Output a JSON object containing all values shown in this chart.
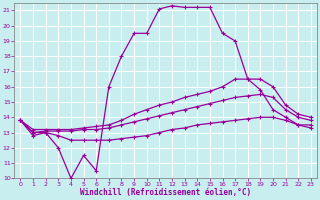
{
  "title": "",
  "xlabel": "Windchill (Refroidissement éolien,°C)",
  "ylabel": "",
  "xlim": [
    -0.5,
    23.5
  ],
  "ylim": [
    10,
    21.5
  ],
  "yticks": [
    10,
    11,
    12,
    13,
    14,
    15,
    16,
    17,
    18,
    19,
    20,
    21
  ],
  "xticks": [
    0,
    1,
    2,
    3,
    4,
    5,
    6,
    7,
    8,
    9,
    10,
    11,
    12,
    13,
    14,
    15,
    16,
    17,
    18,
    19,
    20,
    21,
    22,
    23
  ],
  "background_color": "#c8eef0",
  "grid_color": "#ffffff",
  "line_color": "#990099",
  "line1_x": [
    0,
    1,
    2,
    3,
    4,
    5,
    6,
    7,
    8,
    9,
    10,
    11,
    12,
    13,
    14,
    15,
    16,
    17,
    18,
    19,
    20,
    21,
    22,
    23
  ],
  "line1_y": [
    13.8,
    12.8,
    13.0,
    12.0,
    10.0,
    11.5,
    10.5,
    16.0,
    18.0,
    19.5,
    19.5,
    21.1,
    21.3,
    21.2,
    21.2,
    21.2,
    19.5,
    19.0,
    16.5,
    15.8,
    14.5,
    14.0,
    13.5,
    13.5
  ],
  "line2_x": [
    0,
    1,
    2,
    3,
    4,
    5,
    6,
    7,
    8,
    9,
    10,
    11,
    12,
    13,
    14,
    15,
    16,
    17,
    18,
    19,
    20,
    21,
    22,
    23
  ],
  "line2_y": [
    13.8,
    13.2,
    13.2,
    13.2,
    13.2,
    13.3,
    13.4,
    13.5,
    13.8,
    14.2,
    14.5,
    14.8,
    15.0,
    15.3,
    15.5,
    15.7,
    16.0,
    16.5,
    16.5,
    16.5,
    16.0,
    14.8,
    14.2,
    14.0
  ],
  "line3_x": [
    0,
    1,
    2,
    3,
    4,
    5,
    6,
    7,
    8,
    9,
    10,
    11,
    12,
    13,
    14,
    15,
    16,
    17,
    18,
    19,
    20,
    21,
    22,
    23
  ],
  "line3_y": [
    13.8,
    13.0,
    13.1,
    13.1,
    13.1,
    13.2,
    13.2,
    13.3,
    13.5,
    13.7,
    13.9,
    14.1,
    14.3,
    14.5,
    14.7,
    14.9,
    15.1,
    15.3,
    15.4,
    15.5,
    15.3,
    14.5,
    14.0,
    13.8
  ],
  "line4_x": [
    0,
    1,
    2,
    3,
    4,
    5,
    6,
    7,
    8,
    9,
    10,
    11,
    12,
    13,
    14,
    15,
    16,
    17,
    18,
    19,
    20,
    21,
    22,
    23
  ],
  "line4_y": [
    13.8,
    13.0,
    13.0,
    12.8,
    12.5,
    12.5,
    12.5,
    12.5,
    12.6,
    12.7,
    12.8,
    13.0,
    13.2,
    13.3,
    13.5,
    13.6,
    13.7,
    13.8,
    13.9,
    14.0,
    14.0,
    13.8,
    13.5,
    13.3
  ]
}
